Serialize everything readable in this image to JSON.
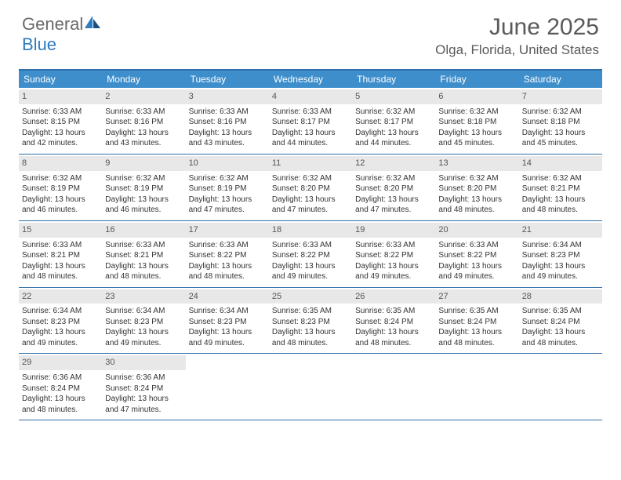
{
  "logo": {
    "text1": "General",
    "text2": "Blue"
  },
  "title": "June 2025",
  "location": "Olga, Florida, United States",
  "colors": {
    "header_bg": "#3d8ecb",
    "header_text": "#ffffff",
    "border": "#2f6fa8",
    "daynum_bg": "#e8e8e8",
    "text": "#333333",
    "logo_gray": "#6a6a6a",
    "logo_blue": "#2f7bbf"
  },
  "day_labels": [
    "Sunday",
    "Monday",
    "Tuesday",
    "Wednesday",
    "Thursday",
    "Friday",
    "Saturday"
  ],
  "weeks": [
    [
      {
        "n": "1",
        "sr": "6:33 AM",
        "ss": "8:15 PM",
        "dl": "13 hours and 42 minutes."
      },
      {
        "n": "2",
        "sr": "6:33 AM",
        "ss": "8:16 PM",
        "dl": "13 hours and 43 minutes."
      },
      {
        "n": "3",
        "sr": "6:33 AM",
        "ss": "8:16 PM",
        "dl": "13 hours and 43 minutes."
      },
      {
        "n": "4",
        "sr": "6:33 AM",
        "ss": "8:17 PM",
        "dl": "13 hours and 44 minutes."
      },
      {
        "n": "5",
        "sr": "6:32 AM",
        "ss": "8:17 PM",
        "dl": "13 hours and 44 minutes."
      },
      {
        "n": "6",
        "sr": "6:32 AM",
        "ss": "8:18 PM",
        "dl": "13 hours and 45 minutes."
      },
      {
        "n": "7",
        "sr": "6:32 AM",
        "ss": "8:18 PM",
        "dl": "13 hours and 45 minutes."
      }
    ],
    [
      {
        "n": "8",
        "sr": "6:32 AM",
        "ss": "8:19 PM",
        "dl": "13 hours and 46 minutes."
      },
      {
        "n": "9",
        "sr": "6:32 AM",
        "ss": "8:19 PM",
        "dl": "13 hours and 46 minutes."
      },
      {
        "n": "10",
        "sr": "6:32 AM",
        "ss": "8:19 PM",
        "dl": "13 hours and 47 minutes."
      },
      {
        "n": "11",
        "sr": "6:32 AM",
        "ss": "8:20 PM",
        "dl": "13 hours and 47 minutes."
      },
      {
        "n": "12",
        "sr": "6:32 AM",
        "ss": "8:20 PM",
        "dl": "13 hours and 47 minutes."
      },
      {
        "n": "13",
        "sr": "6:32 AM",
        "ss": "8:20 PM",
        "dl": "13 hours and 48 minutes."
      },
      {
        "n": "14",
        "sr": "6:32 AM",
        "ss": "8:21 PM",
        "dl": "13 hours and 48 minutes."
      }
    ],
    [
      {
        "n": "15",
        "sr": "6:33 AM",
        "ss": "8:21 PM",
        "dl": "13 hours and 48 minutes."
      },
      {
        "n": "16",
        "sr": "6:33 AM",
        "ss": "8:21 PM",
        "dl": "13 hours and 48 minutes."
      },
      {
        "n": "17",
        "sr": "6:33 AM",
        "ss": "8:22 PM",
        "dl": "13 hours and 48 minutes."
      },
      {
        "n": "18",
        "sr": "6:33 AM",
        "ss": "8:22 PM",
        "dl": "13 hours and 49 minutes."
      },
      {
        "n": "19",
        "sr": "6:33 AM",
        "ss": "8:22 PM",
        "dl": "13 hours and 49 minutes."
      },
      {
        "n": "20",
        "sr": "6:33 AM",
        "ss": "8:22 PM",
        "dl": "13 hours and 49 minutes."
      },
      {
        "n": "21",
        "sr": "6:34 AM",
        "ss": "8:23 PM",
        "dl": "13 hours and 49 minutes."
      }
    ],
    [
      {
        "n": "22",
        "sr": "6:34 AM",
        "ss": "8:23 PM",
        "dl": "13 hours and 49 minutes."
      },
      {
        "n": "23",
        "sr": "6:34 AM",
        "ss": "8:23 PM",
        "dl": "13 hours and 49 minutes."
      },
      {
        "n": "24",
        "sr": "6:34 AM",
        "ss": "8:23 PM",
        "dl": "13 hours and 49 minutes."
      },
      {
        "n": "25",
        "sr": "6:35 AM",
        "ss": "8:23 PM",
        "dl": "13 hours and 48 minutes."
      },
      {
        "n": "26",
        "sr": "6:35 AM",
        "ss": "8:24 PM",
        "dl": "13 hours and 48 minutes."
      },
      {
        "n": "27",
        "sr": "6:35 AM",
        "ss": "8:24 PM",
        "dl": "13 hours and 48 minutes."
      },
      {
        "n": "28",
        "sr": "6:35 AM",
        "ss": "8:24 PM",
        "dl": "13 hours and 48 minutes."
      }
    ],
    [
      {
        "n": "29",
        "sr": "6:36 AM",
        "ss": "8:24 PM",
        "dl": "13 hours and 48 minutes."
      },
      {
        "n": "30",
        "sr": "6:36 AM",
        "ss": "8:24 PM",
        "dl": "13 hours and 47 minutes."
      },
      null,
      null,
      null,
      null,
      null
    ]
  ],
  "labels": {
    "sunrise": "Sunrise:",
    "sunset": "Sunset:",
    "daylight": "Daylight:"
  }
}
